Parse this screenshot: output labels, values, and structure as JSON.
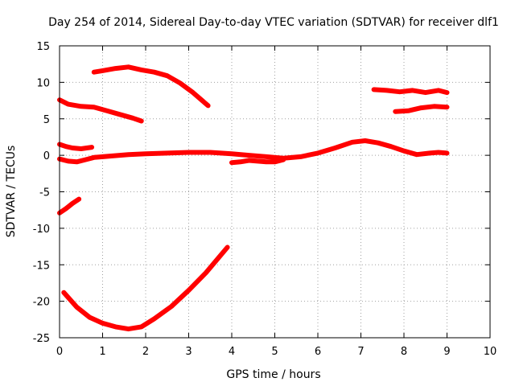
{
  "chart_data": {
    "type": "line",
    "title": "Day 254 of 2014, Sidereal Day-to-day VTEC variation (SDTVAR) for receiver dlf1",
    "xlabel": "GPS time / hours",
    "ylabel": "SDTVAR / TECUs",
    "xlim": [
      0,
      10
    ],
    "ylim": [
      -25,
      15
    ],
    "xticks": [
      "0",
      "1",
      "2",
      "3",
      "4",
      "5",
      "6",
      "7",
      "8",
      "9",
      "10"
    ],
    "yticks": [
      "-25",
      "-20",
      "-15",
      "-10",
      "-5",
      "0",
      "5",
      "10",
      "15"
    ],
    "grid": true,
    "legend": "none",
    "color": "#ff0000",
    "series": [
      {
        "name": "arc-1",
        "x": [
          0.8,
          1.0,
          1.3,
          1.6,
          1.9,
          2.2,
          2.5,
          2.8,
          3.1,
          3.45
        ],
        "y": [
          11.4,
          11.6,
          11.9,
          12.1,
          11.7,
          11.4,
          10.9,
          9.9,
          8.6,
          6.8
        ]
      },
      {
        "name": "arc-2",
        "x": [
          0.0,
          0.2,
          0.5,
          0.8,
          1.1,
          1.4,
          1.7,
          1.9
        ],
        "y": [
          7.6,
          7.0,
          6.7,
          6.6,
          6.1,
          5.6,
          5.1,
          4.7
        ]
      },
      {
        "name": "arc-3",
        "x": [
          0.0,
          0.15,
          0.3,
          0.5,
          0.75
        ],
        "y": [
          1.5,
          1.2,
          1.0,
          0.9,
          1.1
        ]
      },
      {
        "name": "arc-4",
        "x": [
          0.0,
          0.2,
          0.4,
          0.6,
          0.8,
          1.2,
          1.6,
          2.0,
          2.5,
          3.0,
          3.5,
          4.0,
          4.4,
          4.8,
          5.2,
          5.6,
          6.0,
          6.4,
          6.8,
          7.1,
          7.4,
          7.7,
          8.0,
          8.3,
          8.6,
          8.8,
          9.0
        ],
        "y": [
          -0.5,
          -0.8,
          -0.9,
          -0.6,
          -0.3,
          -0.1,
          0.1,
          0.2,
          0.3,
          0.4,
          0.4,
          0.2,
          0.0,
          -0.2,
          -0.4,
          -0.2,
          0.3,
          1.0,
          1.8,
          2.0,
          1.7,
          1.2,
          0.6,
          0.1,
          0.3,
          0.4,
          0.3
        ]
      },
      {
        "name": "arc-5",
        "x": [
          4.0,
          4.2,
          4.4,
          4.6,
          4.8,
          5.0,
          5.2
        ],
        "y": [
          -1.0,
          -0.9,
          -0.7,
          -0.8,
          -0.9,
          -0.9,
          -0.6
        ]
      },
      {
        "name": "arc-6",
        "x": [
          0.0,
          0.15,
          0.3,
          0.45
        ],
        "y": [
          -7.9,
          -7.3,
          -6.6,
          -6.0
        ]
      },
      {
        "name": "arc-7",
        "x": [
          0.1,
          0.4,
          0.7,
          1.0,
          1.3,
          1.6,
          1.9,
          2.2,
          2.6,
          3.0,
          3.4,
          3.7,
          3.9
        ],
        "y": [
          -18.8,
          -20.8,
          -22.2,
          -23.0,
          -23.5,
          -23.8,
          -23.5,
          -22.4,
          -20.7,
          -18.5,
          -16.1,
          -14.0,
          -12.6
        ]
      },
      {
        "name": "arc-8",
        "x": [
          7.3,
          7.6,
          7.9,
          8.2,
          8.5,
          8.8,
          9.0
        ],
        "y": [
          9.0,
          8.9,
          8.7,
          8.9,
          8.6,
          8.9,
          8.6
        ]
      },
      {
        "name": "arc-9",
        "x": [
          7.8,
          8.1,
          8.4,
          8.7,
          9.0
        ],
        "y": [
          6.0,
          6.1,
          6.5,
          6.7,
          6.6
        ]
      }
    ]
  }
}
